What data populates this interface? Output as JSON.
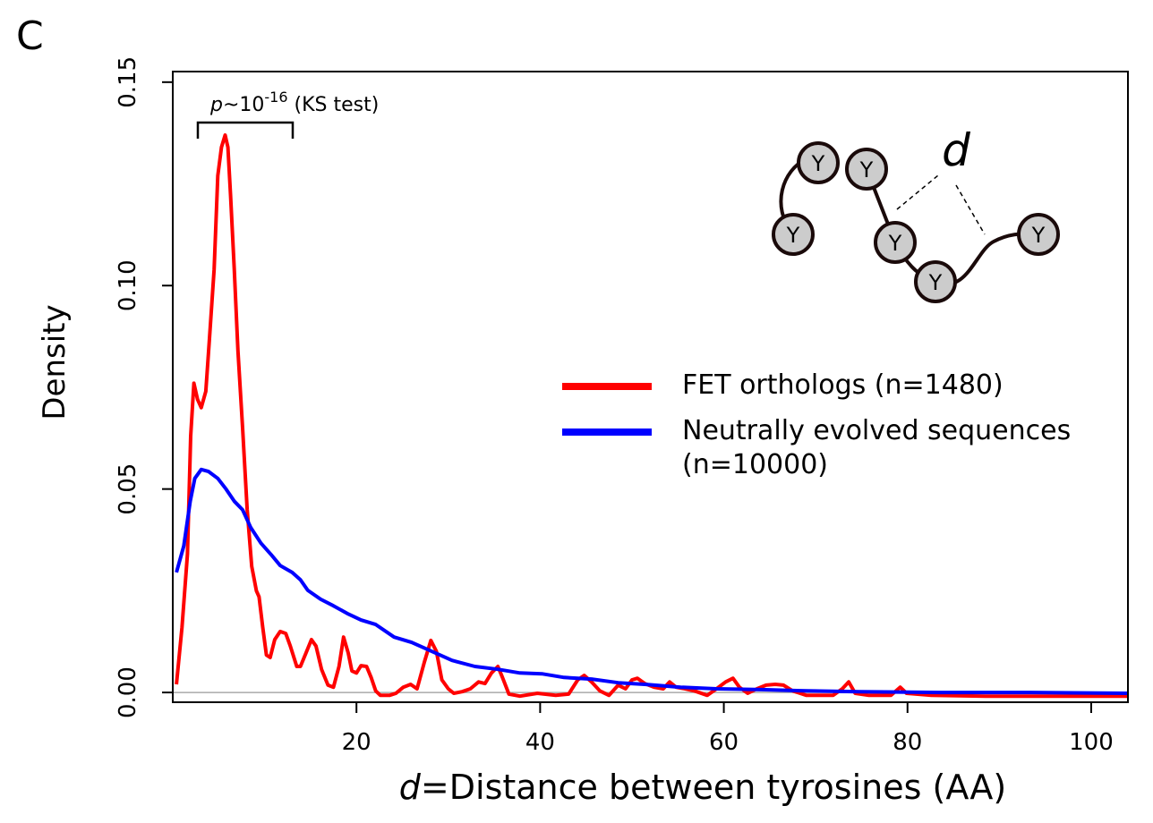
{
  "chart_data": {
    "type": "line",
    "panel_label": "C",
    "y_label": "Density",
    "x_label": {
      "italic": "d",
      "text": "=Distance between tyrosines (AA)"
    },
    "annotation": {
      "italic": "p",
      "text": "~10",
      "superscript": "-16",
      "suffix": " (KS test)"
    },
    "inset": {
      "nodes": [
        "Y",
        "Y",
        "Y",
        "Y",
        "Y",
        "Y"
      ],
      "distance_label": "d"
    },
    "xlim": [
      0,
      104
    ],
    "ylim": [
      -0.0024,
      0.1526
    ],
    "xticks": [
      20,
      40,
      60,
      80,
      100
    ],
    "yticks": [
      {
        "value": 0,
        "label": "0.00"
      },
      0.05,
      {
        "value": 0.1,
        "label": "0.10"
      },
      0.15
    ],
    "zero_line": true,
    "series": [
      {
        "name": "FET orthologs (n=1480)",
        "color": "#ff0000",
        "x": [
          0.4,
          1,
          1.6,
          1.95,
          2.3,
          2.7,
          3.1,
          3.6,
          4,
          4.5,
          4.9,
          5.3,
          5.7,
          6.0,
          6.3,
          6.7,
          7.1,
          7.6,
          8.1,
          8.6,
          9.1,
          9.4,
          9.8,
          10.2,
          10.6,
          11.1,
          11.7,
          12.3,
          12.8,
          13.5,
          13.9,
          14.5,
          15.1,
          15.6,
          16.2,
          16.9,
          17.5,
          18.1,
          18.6,
          19.1,
          19.5,
          20,
          20.5,
          21.1,
          21.6,
          22.1,
          22.6,
          23.6,
          24.3,
          25.1,
          25.9,
          26.6,
          27.4,
          28.1,
          28.7,
          29.3,
          30,
          30.6,
          31.5,
          32.4,
          33.3,
          34,
          34.7,
          35.4,
          35.9,
          36.6,
          37.8,
          39.7,
          41.7,
          43.1,
          44.1,
          44.8,
          45.6,
          46.5,
          47.5,
          48.5,
          49.3,
          50,
          50.6,
          51.4,
          52.4,
          53.4,
          54.1,
          54.8,
          55.8,
          56.8,
          58.2,
          59.2,
          60.2,
          61,
          61.7,
          62.6,
          63.6,
          64.6,
          65.6,
          66.5,
          67.5,
          69,
          71.9,
          72.9,
          73.6,
          74.3,
          75.8,
          78.2,
          79.2,
          79.9,
          82.6,
          88.5,
          103.9
        ],
        "values": [
          0.002,
          0.016,
          0.034,
          0.063,
          0.076,
          0.072,
          0.07,
          0.074,
          0.087,
          0.104,
          0.127,
          0.134,
          0.137,
          0.134,
          0.122,
          0.104,
          0.084,
          0.065,
          0.045,
          0.031,
          0.025,
          0.0235,
          0.016,
          0.0092,
          0.0086,
          0.013,
          0.015,
          0.0145,
          0.0114,
          0.0064,
          0.0064,
          0.0097,
          0.013,
          0.0114,
          0.0057,
          0.0018,
          0.0013,
          0.0064,
          0.0136,
          0.0097,
          0.0053,
          0.0048,
          0.0066,
          0.0064,
          0.0037,
          0.0004,
          -0.0007,
          -0.0007,
          -0.0002,
          0.0013,
          0.002,
          0.0009,
          0.0075,
          0.0128,
          0.0101,
          0.0031,
          0.0009,
          -0.0002,
          0.0002,
          0.0009,
          0.0026,
          0.0022,
          0.0048,
          0.0064,
          0.0037,
          -0.0004,
          -0.0009,
          -0.0002,
          -0.0007,
          -0.0004,
          0.0031,
          0.0042,
          0.0026,
          0.0004,
          -0.0007,
          0.0018,
          0.0009,
          0.0031,
          0.0035,
          0.0022,
          0.0013,
          0.0009,
          0.0026,
          0.0013,
          0.0009,
          0.0004,
          -0.0007,
          0.0009,
          0.0026,
          0.0035,
          0.0013,
          -0.0002,
          0.0009,
          0.0018,
          0.002,
          0.0018,
          0.0004,
          -0.0007,
          -0.0007,
          0.0009,
          0.0026,
          -0.0002,
          -0.0007,
          -0.0007,
          0.0013,
          -0.0002,
          -0.0007,
          -0.0009,
          -0.0009
        ]
      },
      {
        "name": "Neutrally evolved sequences (n=10000)",
        "color": "#0000ff",
        "x": [
          0.4,
          1.2,
          1.9,
          2.4,
          3.1,
          3.9,
          4.9,
          5.8,
          6.7,
          7.6,
          8.5,
          9.6,
          10.7,
          11.7,
          13,
          13.9,
          14.7,
          16.1,
          17.5,
          19,
          20.5,
          22.1,
          24.1,
          26,
          28,
          30.4,
          32.9,
          35.4,
          37.8,
          40.2,
          42.6,
          45.6,
          48.5,
          51.4,
          55.3,
          59.2,
          64.1,
          69,
          74.8,
          83.6,
          93.4,
          103.9
        ],
        "values": [
          0.0295,
          0.036,
          0.047,
          0.0526,
          0.0548,
          0.0543,
          0.0526,
          0.05,
          0.047,
          0.0449,
          0.0405,
          0.0367,
          0.0339,
          0.0312,
          0.0295,
          0.0277,
          0.0251,
          0.0229,
          0.0213,
          0.0194,
          0.0178,
          0.0167,
          0.0136,
          0.0123,
          0.0103,
          0.0079,
          0.0064,
          0.0057,
          0.0048,
          0.0046,
          0.0037,
          0.0033,
          0.0024,
          0.002,
          0.0013,
          0.0009,
          0.0007,
          0.0004,
          0.0002,
          0,
          0,
          -0.0002
        ]
      }
    ]
  }
}
